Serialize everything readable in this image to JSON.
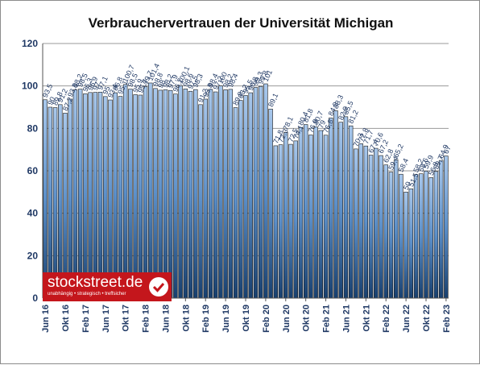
{
  "chart_data": {
    "type": "bar",
    "title": "Verbrauchervertrauen der Universität Michigan",
    "xlabel": "",
    "ylabel": "",
    "ylim": [
      0,
      120
    ],
    "yticks": [
      0,
      20,
      40,
      60,
      80,
      100,
      120
    ],
    "grid": true,
    "bar_color": "#5b8fc9",
    "categories": [
      "Jun 16",
      "Jul 16",
      "Aug 16",
      "Sep 16",
      "Okt 16",
      "Nov 16",
      "Dez 16",
      "Jan 17",
      "Feb 17",
      "Mrz 17",
      "Apr 17",
      "Mai 17",
      "Jun 17",
      "Jul 17",
      "Aug 17",
      "Sep 17",
      "Okt 17",
      "Nov 17",
      "Dez 17",
      "Jan 18",
      "Feb 18",
      "Mrz 18",
      "Apr 18",
      "Mai 18",
      "Jun 18",
      "Jul 18",
      "Aug 18",
      "Sep 18",
      "Okt 18",
      "Nov 18",
      "Dez 18",
      "Jan 19",
      "Feb 19",
      "Mrz 19",
      "Apr 19",
      "Mai 19",
      "Jun 19",
      "Jul 19",
      "Aug 19",
      "Sep 19",
      "Okt 19",
      "Nov 19",
      "Dez 19",
      "Jan 20",
      "Feb 20",
      "Mrz 20",
      "Apr 20",
      "Mai 20",
      "Jun 20",
      "Jul 20",
      "Aug 20",
      "Sep 20",
      "Okt 20",
      "Nov 20",
      "Dez 20",
      "Jan 21",
      "Feb 21",
      "Mrz 21",
      "Apr 21",
      "Mai 21",
      "Jun 21",
      "Jul 21",
      "Aug 21",
      "Sep 21",
      "Okt 21",
      "Nov 21",
      "Dez 21",
      "Jan 22",
      "Feb 22",
      "Mrz 22",
      "Apr 22",
      "Mai 22",
      "Jun 22",
      "Jul 22",
      "Aug 22",
      "Sep 22",
      "Okt 22",
      "Nov 22",
      "Dez 22",
      "Jan 23",
      "Feb 23"
    ],
    "values": [
      93.5,
      90,
      89.8,
      91.2,
      87.2,
      93.8,
      98.2,
      98.5,
      96.3,
      96.9,
      97,
      97.1,
      95,
      93.4,
      96.8,
      95.1,
      100.7,
      98.5,
      95.9,
      95.7,
      99.7,
      101.4,
      98.8,
      98,
      98.2,
      97.9,
      96.2,
      100.1,
      98.6,
      97.5,
      98.3,
      91.2,
      93.8,
      98.4,
      97.2,
      100,
      98.2,
      98.4,
      89.8,
      93.2,
      95.5,
      96.8,
      99.3,
      99.8,
      101,
      89.1,
      71.8,
      72.3,
      78.1,
      72.5,
      74.1,
      80.4,
      81.8,
      76.9,
      80.7,
      79,
      76.8,
      84.9,
      88.3,
      82.9,
      85.5,
      81.2,
      70.3,
      72.8,
      71.7,
      67.4,
      70.6,
      67.2,
      62.8,
      59.4,
      65.2,
      58.4,
      50,
      51.5,
      58.2,
      58.6,
      59.9,
      56.8,
      59.7,
      64.9,
      67
    ],
    "x_tick_labels": [
      "Jun 16",
      "Okt 16",
      "Feb 17",
      "Jun 17",
      "Okt 17",
      "Feb 18",
      "Jun 18",
      "Okt 18",
      "Feb 19",
      "Jun 19",
      "Okt 19",
      "Feb 20",
      "Jun 20",
      "Okt 20",
      "Feb 21",
      "Jun 21",
      "Okt 21",
      "Feb 22",
      "Jun 22",
      "Okt 22",
      "Feb 23"
    ]
  },
  "logo": {
    "name": "stockstreet.de",
    "tagline": "unabhängig • strategisch • treffsicher",
    "color": "#c4161c"
  }
}
